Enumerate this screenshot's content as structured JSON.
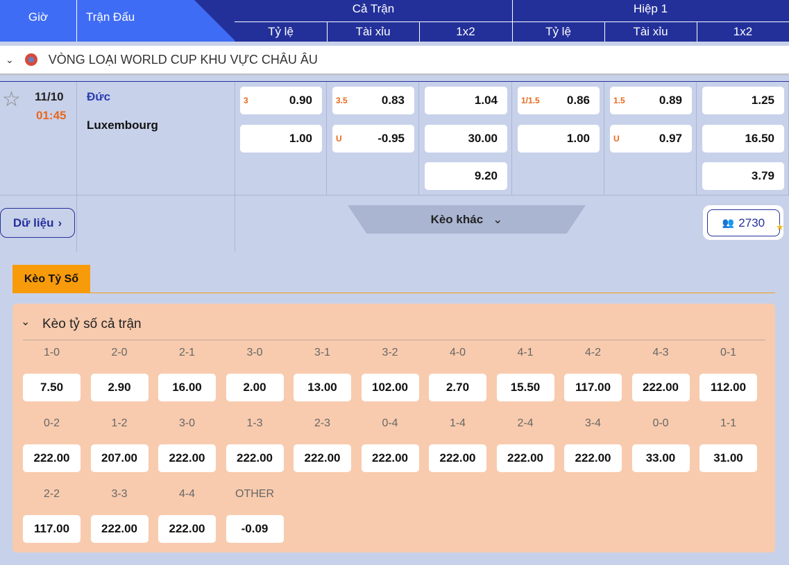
{
  "header": {
    "time": "Giờ",
    "match": "Trận Đấu",
    "full": "Cả Trận",
    "half": "Hiệp 1",
    "cols": [
      "Tỷ lệ",
      "Tài xỉu",
      "1x2",
      "Tỷ lệ",
      "Tài xỉu",
      "1x2"
    ]
  },
  "league": {
    "name": "VÒNG LOẠI WORLD CUP KHU VỰC CHÂU ÂU"
  },
  "match": {
    "date": "11/10",
    "time": "01:45",
    "home": "Đức",
    "away": "Luxembourg",
    "odds": [
      [
        {
          "h": "3",
          "v": "0.90"
        },
        {
          "h": "",
          "v": "1.00"
        }
      ],
      [
        {
          "h": "3.5",
          "v": "0.83"
        },
        {
          "h": "U",
          "v": "-0.95"
        }
      ],
      [
        {
          "h": "",
          "v": "1.04"
        },
        {
          "h": "",
          "v": "30.00"
        },
        {
          "h": "",
          "v": "9.20"
        }
      ],
      [
        {
          "h": "1/1.5",
          "v": "0.86"
        },
        {
          "h": "",
          "v": "1.00"
        }
      ],
      [
        {
          "h": "1.5",
          "v": "0.89"
        },
        {
          "h": "U",
          "v": "0.97"
        }
      ],
      [
        {
          "h": "",
          "v": "1.25"
        },
        {
          "h": "",
          "v": "16.50"
        },
        {
          "h": "",
          "v": "3.79"
        }
      ]
    ],
    "data_button": "Dữ liệu",
    "more_button": "Kèo khác",
    "viewers": "2730"
  },
  "tab": "Kèo Tỷ Số",
  "panel": {
    "title": "Kèo tỷ số cả trận",
    "scores": [
      {
        "s": "1-0",
        "o": "7.50"
      },
      {
        "s": "2-0",
        "o": "2.90"
      },
      {
        "s": "2-1",
        "o": "16.00"
      },
      {
        "s": "3-0",
        "o": "2.00"
      },
      {
        "s": "3-1",
        "o": "13.00"
      },
      {
        "s": "3-2",
        "o": "102.00"
      },
      {
        "s": "4-0",
        "o": "2.70"
      },
      {
        "s": "4-1",
        "o": "15.50"
      },
      {
        "s": "4-2",
        "o": "117.00"
      },
      {
        "s": "4-3",
        "o": "222.00"
      },
      {
        "s": "0-1",
        "o": "112.00"
      },
      {
        "s": "0-2",
        "o": "222.00"
      },
      {
        "s": "1-2",
        "o": "207.00"
      },
      {
        "s": "3-0",
        "o": "222.00"
      },
      {
        "s": "1-3",
        "o": "222.00"
      },
      {
        "s": "2-3",
        "o": "222.00"
      },
      {
        "s": "0-4",
        "o": "222.00"
      },
      {
        "s": "1-4",
        "o": "222.00"
      },
      {
        "s": "2-4",
        "o": "222.00"
      },
      {
        "s": "3-4",
        "o": "222.00"
      },
      {
        "s": "0-0",
        "o": "33.00"
      },
      {
        "s": "1-1",
        "o": "31.00"
      },
      {
        "s": "2-2",
        "o": "117.00"
      },
      {
        "s": "3-3",
        "o": "222.00"
      },
      {
        "s": "4-4",
        "o": "222.00"
      },
      {
        "s": "OTHER",
        "o": "-0.09"
      }
    ]
  },
  "colors": {
    "header": "#23309a",
    "header_left": "#3f6cf5",
    "accent": "#f89b0b",
    "handicap": "#e8681c",
    "panel": "#f8cbae"
  }
}
